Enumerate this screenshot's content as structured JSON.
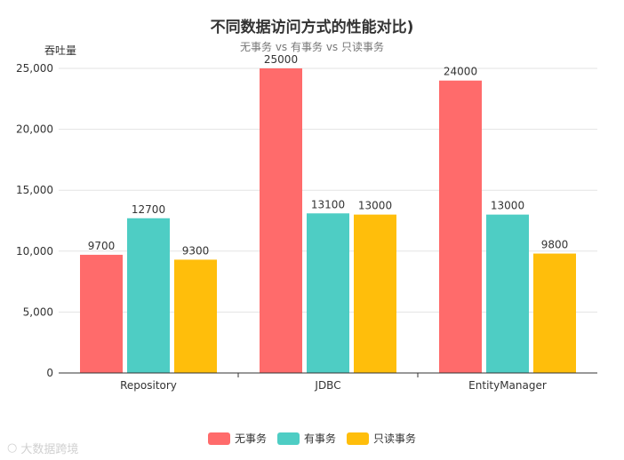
{
  "chart_data": {
    "type": "bar",
    "title": "不同数据访问方式的性能对比)",
    "subtitle": "无事务 vs 有事务 vs 只读事务",
    "ylabel": "吞吐量",
    "categories": [
      "Repository",
      "JDBC",
      "EntityManager"
    ],
    "series": [
      {
        "name": "无事务",
        "color": "#ff6b6b",
        "values": [
          9700,
          25000,
          24000
        ]
      },
      {
        "name": "有事务",
        "color": "#4ecdc4",
        "values": [
          12700,
          13100,
          13000
        ]
      },
      {
        "name": "只读事务",
        "color": "#ffbe0b",
        "values": [
          9300,
          13000,
          9800
        ]
      }
    ],
    "ylim": [
      0,
      25000
    ],
    "yticks": [
      0,
      5000,
      10000,
      15000,
      20000,
      25000
    ],
    "ytick_labels": [
      "0",
      "5,000",
      "10,000",
      "15,000",
      "20,000",
      "25,000"
    ],
    "grid": true,
    "legend_position": "bottom"
  },
  "watermark": "大数据跨境"
}
